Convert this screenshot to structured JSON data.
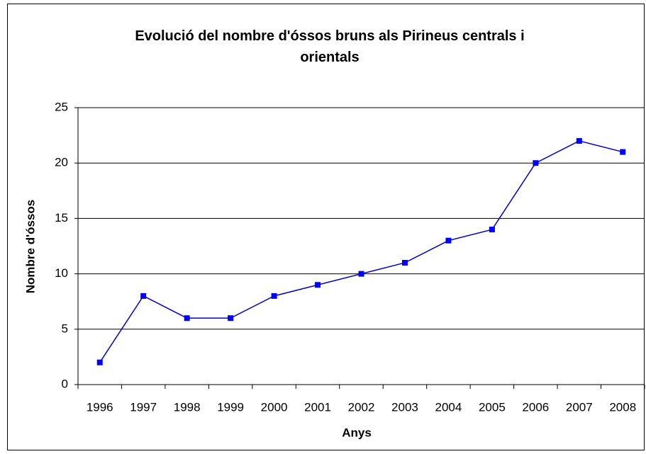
{
  "chart_data": {
    "type": "line",
    "title": "Evolució del nombre d'óssos bruns als Pirineus centrals i orientals",
    "xlabel": "Anys",
    "ylabel": "Nombre d'óssos",
    "categories": [
      "1996",
      "1997",
      "1998",
      "1999",
      "2000",
      "2001",
      "2002",
      "2003",
      "2004",
      "2005",
      "2006",
      "2007",
      "2008"
    ],
    "values": [
      2,
      8,
      6,
      6,
      8,
      9,
      10,
      11,
      13,
      14,
      20,
      22,
      21
    ],
    "color": "#0000ff",
    "line_color": "#0000cc",
    "ylim": [
      0,
      25
    ],
    "yticks": [
      0,
      5,
      10,
      15,
      20,
      25
    ],
    "grid": true
  }
}
